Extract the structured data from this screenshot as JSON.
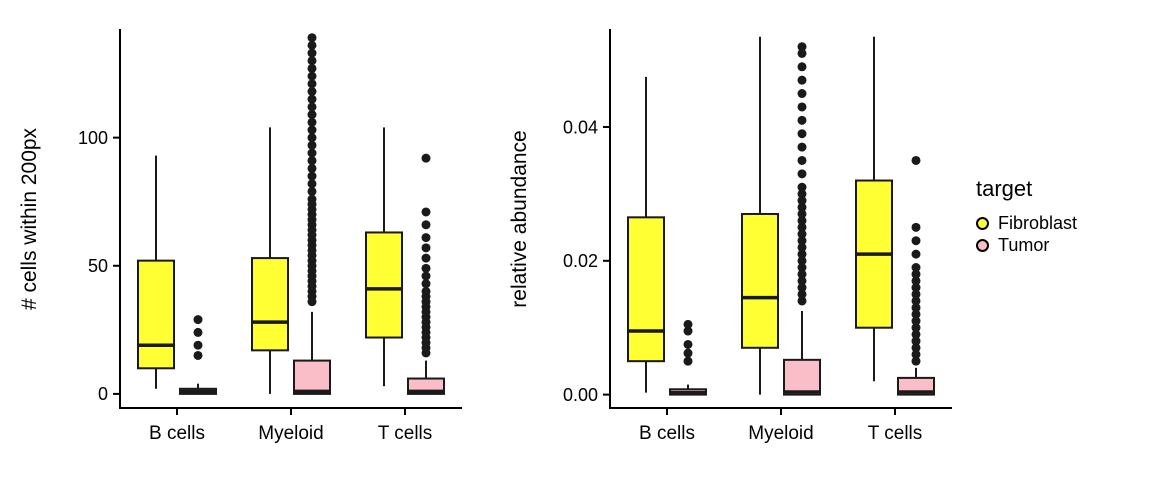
{
  "legend": {
    "title": "target",
    "items": [
      {
        "label": "Fibroblast",
        "color": "#FFFF33"
      },
      {
        "label": "Tumor",
        "color": "#F9BEC7"
      }
    ]
  },
  "chart_data": [
    {
      "type": "boxplot",
      "title": "",
      "ylabel": "# cells within 200px",
      "xlabel": "",
      "categories": [
        "B cells",
        "Myeloid",
        "T cells"
      ],
      "ylim": [
        -5.5,
        142
      ],
      "yticks": [
        0,
        50,
        100
      ],
      "ytick_labels": [
        "0",
        "50",
        "100"
      ],
      "grid": false,
      "legend_position": "right",
      "series": [
        {
          "name": "Fibroblast",
          "color": "#FFFF33",
          "boxes": [
            {
              "category": "B cells",
              "whisker_low": 2,
              "q1": 10,
              "median": 19,
              "q3": 52,
              "whisker_high": 93,
              "outliers": []
            },
            {
              "category": "Myeloid",
              "whisker_low": 0,
              "q1": 17,
              "median": 28,
              "q3": 53,
              "whisker_high": 104,
              "outliers": []
            },
            {
              "category": "T cells",
              "whisker_low": 3,
              "q1": 22,
              "median": 41,
              "q3": 63,
              "whisker_high": 104,
              "outliers": []
            }
          ]
        },
        {
          "name": "Tumor",
          "color": "#F9BEC7",
          "boxes": [
            {
              "category": "B cells",
              "whisker_low": 0,
              "q1": 0,
              "median": 1,
              "q3": 2,
              "whisker_high": 4,
              "outliers": [
                15,
                19,
                24,
                29
              ]
            },
            {
              "category": "Myeloid",
              "whisker_low": 0,
              "q1": 0,
              "median": 1,
              "q3": 13,
              "whisker_high": 32,
              "outliers": [
                36,
                38,
                40,
                42,
                44,
                46,
                48,
                50,
                52,
                54,
                56,
                58,
                60,
                62,
                64,
                66,
                68,
                70,
                72,
                74,
                76,
                79,
                82,
                85,
                88,
                91,
                94,
                97,
                100,
                103,
                106,
                109,
                112,
                115,
                118,
                121,
                124,
                127,
                130,
                133,
                136,
                139
              ]
            },
            {
              "category": "T cells",
              "whisker_low": 0,
              "q1": 0,
              "median": 1,
              "q3": 6,
              "whisker_high": 13,
              "outliers": [
                16,
                18,
                20,
                22,
                24,
                26,
                28,
                30,
                32,
                34,
                36,
                38,
                40,
                43,
                46,
                49,
                53,
                57,
                61,
                66,
                71,
                92
              ]
            }
          ]
        }
      ]
    },
    {
      "type": "boxplot",
      "title": "",
      "ylabel": "relative abundance",
      "xlabel": "",
      "categories": [
        "B cells",
        "Myeloid",
        "T cells"
      ],
      "ylim": [
        -0.002,
        0.0545
      ],
      "yticks": [
        0,
        0.02,
        0.04
      ],
      "ytick_labels": [
        "0.00",
        "0.02",
        "0.04"
      ],
      "grid": false,
      "legend_position": "right",
      "series": [
        {
          "name": "Fibroblast",
          "color": "#FFFF33",
          "boxes": [
            {
              "category": "B cells",
              "whisker_low": 0.0003,
              "q1": 0.005,
              "median": 0.0095,
              "q3": 0.0265,
              "whisker_high": 0.0475,
              "outliers": []
            },
            {
              "category": "Myeloid",
              "whisker_low": 0.0,
              "q1": 0.007,
              "median": 0.0145,
              "q3": 0.027,
              "whisker_high": 0.0535,
              "outliers": []
            },
            {
              "category": "T cells",
              "whisker_low": 0.002,
              "q1": 0.01,
              "median": 0.021,
              "q3": 0.032,
              "whisker_high": 0.0535,
              "outliers": []
            }
          ]
        },
        {
          "name": "Tumor",
          "color": "#F9BEC7",
          "boxes": [
            {
              "category": "B cells",
              "whisker_low": 0,
              "q1": 0,
              "median": 0.0003,
              "q3": 0.0008,
              "whisker_high": 0.0015,
              "outliers": [
                0.005,
                0.0062,
                0.0075,
                0.0095,
                0.0105
              ]
            },
            {
              "category": "Myeloid",
              "whisker_low": 0,
              "q1": 0,
              "median": 0.0004,
              "q3": 0.0052,
              "whisker_high": 0.0125,
              "outliers": [
                0.014,
                0.015,
                0.016,
                0.017,
                0.018,
                0.019,
                0.02,
                0.021,
                0.022,
                0.023,
                0.024,
                0.025,
                0.026,
                0.027,
                0.028,
                0.029,
                0.03,
                0.031,
                0.033,
                0.035,
                0.037,
                0.039,
                0.041,
                0.043,
                0.045,
                0.047,
                0.049,
                0.051,
                0.052
              ]
            },
            {
              "category": "T cells",
              "whisker_low": 0,
              "q1": 0,
              "median": 0.0004,
              "q3": 0.0025,
              "whisker_high": 0.004,
              "outliers": [
                0.005,
                0.006,
                0.007,
                0.008,
                0.009,
                0.01,
                0.011,
                0.012,
                0.013,
                0.014,
                0.015,
                0.016,
                0.017,
                0.018,
                0.019,
                0.021,
                0.023,
                0.025,
                0.035
              ]
            }
          ]
        }
      ]
    }
  ]
}
